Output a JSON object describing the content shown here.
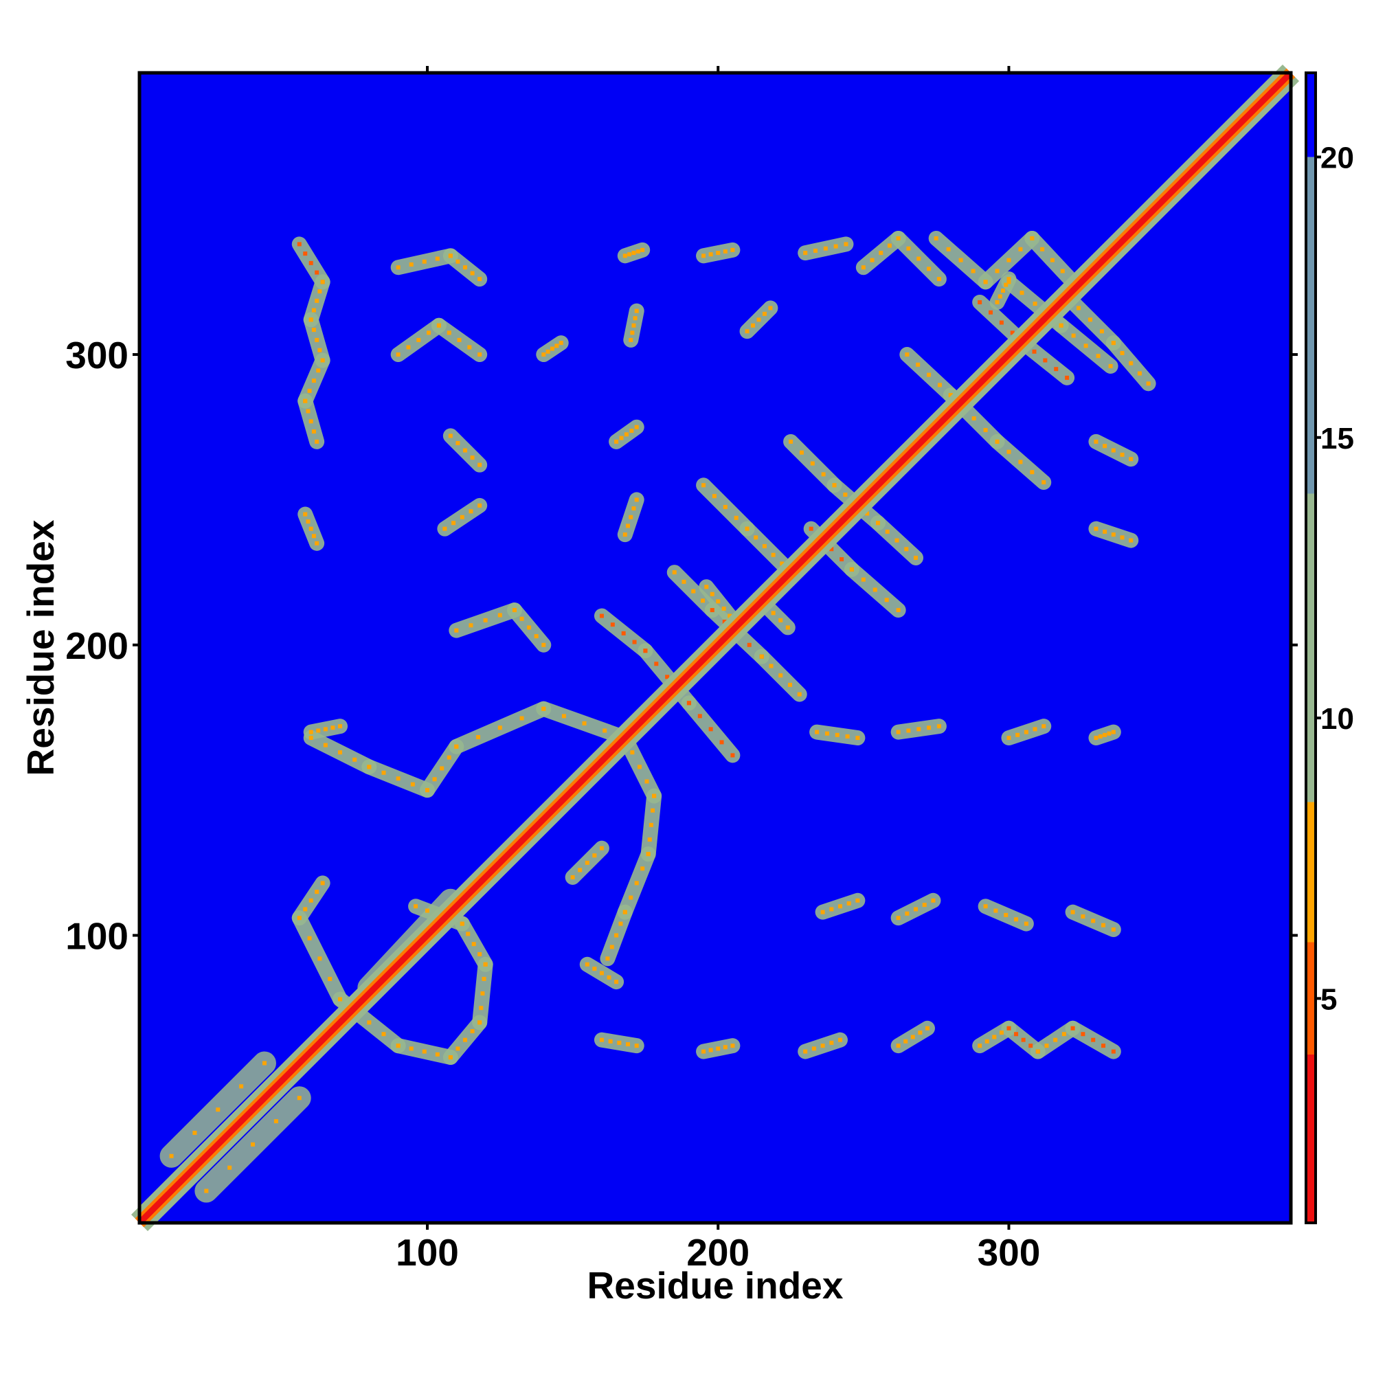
{
  "chart_data": {
    "type": "heatmap",
    "title": "",
    "xlabel": "Residue index",
    "ylabel": "Residue index",
    "xlim": [
      1,
      397
    ],
    "ylim": [
      1,
      397
    ],
    "x_ticks": [
      "100",
      "200",
      "300"
    ],
    "y_ticks": [
      "100",
      "200",
      "300"
    ],
    "grid": false,
    "colorbar": {
      "ticks": [
        "5",
        "10",
        "15",
        "20"
      ],
      "range": [
        1,
        21.5
      ],
      "colors": [
        {
          "from": 1,
          "to": 4,
          "color": "#ee1111"
        },
        {
          "from": 4,
          "to": 6,
          "color": "#ff5a00"
        },
        {
          "from": 6,
          "to": 8.5,
          "color": "#ffa500"
        },
        {
          "from": 8.5,
          "to": 14,
          "color": "#98b890"
        },
        {
          "from": 14,
          "to": 20,
          "color": "#6f96ae"
        },
        {
          "from": 20,
          "to": 21.5,
          "color": "#0000ff"
        }
      ]
    },
    "background_value": 21,
    "background_color": "#0000f5",
    "diagonal": {
      "core_color": "#ee1111",
      "edge_color": "#ff7a00",
      "halo_color": "#98b890"
    },
    "contact_segments": [
      {
        "from": [
          12,
          24
        ],
        "to": [
          44,
          56
        ],
        "level": "halo"
      },
      {
        "from": [
          24,
          12
        ],
        "to": [
          56,
          44
        ],
        "level": "halo"
      },
      {
        "from": [
          80,
          82
        ],
        "to": [
          108,
          112
        ],
        "level": "halo"
      },
      {
        "from": [
          56,
          106
        ],
        "to": [
          70,
          78
        ],
        "level": "mid"
      },
      {
        "from": [
          70,
          78
        ],
        "to": [
          90,
          62
        ],
        "level": "mid"
      },
      {
        "from": [
          90,
          62
        ],
        "to": [
          108,
          58
        ],
        "level": "mid"
      },
      {
        "from": [
          108,
          58
        ],
        "to": [
          118,
          70
        ],
        "level": "mid"
      },
      {
        "from": [
          118,
          70
        ],
        "to": [
          120,
          90
        ],
        "level": "mid"
      },
      {
        "from": [
          120,
          90
        ],
        "to": [
          112,
          104
        ],
        "level": "mid"
      },
      {
        "from": [
          112,
          104
        ],
        "to": [
          96,
          110
        ],
        "level": "mid"
      },
      {
        "from": [
          56,
          106
        ],
        "to": [
          64,
          118
        ],
        "level": "mid"
      },
      {
        "from": [
          110,
          165
        ],
        "to": [
          140,
          178
        ],
        "level": "mid"
      },
      {
        "from": [
          140,
          178
        ],
        "to": [
          168,
          168
        ],
        "level": "mid"
      },
      {
        "from": [
          168,
          168
        ],
        "to": [
          178,
          148
        ],
        "level": "mid"
      },
      {
        "from": [
          178,
          148
        ],
        "to": [
          176,
          128
        ],
        "level": "mid"
      },
      {
        "from": [
          176,
          128
        ],
        "to": [
          168,
          108
        ],
        "level": "mid"
      },
      {
        "from": [
          168,
          108
        ],
        "to": [
          162,
          92
        ],
        "level": "mid"
      },
      {
        "from": [
          60,
          168
        ],
        "to": [
          80,
          158
        ],
        "level": "mid"
      },
      {
        "from": [
          80,
          158
        ],
        "to": [
          100,
          150
        ],
        "level": "mid"
      },
      {
        "from": [
          100,
          150
        ],
        "to": [
          110,
          165
        ],
        "level": "mid"
      },
      {
        "from": [
          160,
          210
        ],
        "to": [
          175,
          198
        ],
        "level": "hot"
      },
      {
        "from": [
          175,
          198
        ],
        "to": [
          190,
          180
        ],
        "level": "hot"
      },
      {
        "from": [
          190,
          180
        ],
        "to": [
          205,
          162
        ],
        "level": "hot"
      },
      {
        "from": [
          185,
          225
        ],
        "to": [
          198,
          212
        ],
        "level": "mid"
      },
      {
        "from": [
          198,
          212
        ],
        "to": [
          215,
          196
        ],
        "level": "hot"
      },
      {
        "from": [
          215,
          196
        ],
        "to": [
          228,
          183
        ],
        "level": "mid"
      },
      {
        "from": [
          195,
          255
        ],
        "to": [
          210,
          240
        ],
        "level": "mid"
      },
      {
        "from": [
          210,
          240
        ],
        "to": [
          222,
          228
        ],
        "level": "mid"
      },
      {
        "from": [
          225,
          270
        ],
        "to": [
          240,
          255
        ],
        "level": "mid"
      },
      {
        "from": [
          240,
          255
        ],
        "to": [
          255,
          242
        ],
        "level": "mid"
      },
      {
        "from": [
          255,
          242
        ],
        "to": [
          268,
          230
        ],
        "level": "mid"
      },
      {
        "from": [
          232,
          240
        ],
        "to": [
          246,
          226
        ],
        "level": "hot"
      },
      {
        "from": [
          246,
          226
        ],
        "to": [
          262,
          212
        ],
        "level": "mid"
      },
      {
        "from": [
          265,
          300
        ],
        "to": [
          280,
          286
        ],
        "level": "mid"
      },
      {
        "from": [
          280,
          286
        ],
        "to": [
          296,
          270
        ],
        "level": "mid"
      },
      {
        "from": [
          296,
          270
        ],
        "to": [
          312,
          256
        ],
        "level": "mid"
      },
      {
        "from": [
          290,
          318
        ],
        "to": [
          305,
          304
        ],
        "level": "hot"
      },
      {
        "from": [
          305,
          304
        ],
        "to": [
          320,
          292
        ],
        "level": "hot"
      },
      {
        "from": [
          300,
          325
        ],
        "to": [
          318,
          310
        ],
        "level": "mid"
      },
      {
        "from": [
          318,
          310
        ],
        "to": [
          335,
          296
        ],
        "level": "mid"
      },
      {
        "from": [
          275,
          340
        ],
        "to": [
          292,
          325
        ],
        "level": "mid"
      },
      {
        "from": [
          292,
          325
        ],
        "to": [
          308,
          340
        ],
        "level": "mid"
      },
      {
        "from": [
          308,
          340
        ],
        "to": [
          322,
          325
        ],
        "level": "mid"
      },
      {
        "from": [
          250,
          330
        ],
        "to": [
          262,
          340
        ],
        "level": "mid"
      },
      {
        "from": [
          262,
          340
        ],
        "to": [
          276,
          326
        ],
        "level": "mid"
      },
      {
        "from": [
          320,
          320
        ],
        "to": [
          336,
          304
        ],
        "level": "mid"
      },
      {
        "from": [
          336,
          304
        ],
        "to": [
          348,
          290
        ],
        "level": "mid"
      },
      {
        "from": [
          56,
          338
        ],
        "to": [
          64,
          325
        ],
        "level": "hot"
      },
      {
        "from": [
          64,
          325
        ],
        "to": [
          60,
          312
        ],
        "level": "mid"
      },
      {
        "from": [
          60,
          312
        ],
        "to": [
          64,
          298
        ],
        "level": "mid"
      },
      {
        "from": [
          64,
          298
        ],
        "to": [
          58,
          284
        ],
        "level": "mid"
      },
      {
        "from": [
          58,
          284
        ],
        "to": [
          62,
          270
        ],
        "level": "mid"
      },
      {
        "from": [
          58,
          245
        ],
        "to": [
          62,
          235
        ],
        "level": "mid"
      },
      {
        "from": [
          90,
          300
        ],
        "to": [
          104,
          310
        ],
        "level": "mid"
      },
      {
        "from": [
          104,
          310
        ],
        "to": [
          118,
          300
        ],
        "level": "mid"
      },
      {
        "from": [
          90,
          330
        ],
        "to": [
          108,
          334
        ],
        "level": "mid"
      },
      {
        "from": [
          108,
          334
        ],
        "to": [
          118,
          326
        ],
        "level": "mid"
      },
      {
        "from": [
          108,
          272
        ],
        "to": [
          118,
          262
        ],
        "level": "mid"
      },
      {
        "from": [
          106,
          240
        ],
        "to": [
          118,
          248
        ],
        "level": "mid"
      },
      {
        "from": [
          110,
          205
        ],
        "to": [
          130,
          212
        ],
        "level": "mid"
      },
      {
        "from": [
          130,
          212
        ],
        "to": [
          140,
          200
        ],
        "level": "mid"
      },
      {
        "from": [
          60,
          170
        ],
        "to": [
          70,
          172
        ],
        "level": "mid"
      },
      {
        "from": [
          170,
          305
        ],
        "to": [
          172,
          315
        ],
        "level": "mid"
      },
      {
        "from": [
          165,
          270
        ],
        "to": [
          172,
          275
        ],
        "level": "mid"
      },
      {
        "from": [
          168,
          238
        ],
        "to": [
          172,
          250
        ],
        "level": "mid"
      },
      {
        "from": [
          168,
          334
        ],
        "to": [
          174,
          336
        ],
        "level": "mid"
      },
      {
        "from": [
          150,
          120
        ],
        "to": [
          160,
          130
        ],
        "level": "mid"
      },
      {
        "from": [
          155,
          90
        ],
        "to": [
          165,
          84
        ],
        "level": "mid"
      },
      {
        "from": [
          160,
          64
        ],
        "to": [
          172,
          62
        ],
        "level": "mid"
      },
      {
        "from": [
          195,
          60
        ],
        "to": [
          205,
          62
        ],
        "level": "mid"
      },
      {
        "from": [
          230,
          60
        ],
        "to": [
          242,
          64
        ],
        "level": "mid"
      },
      {
        "from": [
          262,
          62
        ],
        "to": [
          272,
          68
        ],
        "level": "mid"
      },
      {
        "from": [
          290,
          62
        ],
        "to": [
          300,
          68
        ],
        "level": "mid"
      },
      {
        "from": [
          300,
          68
        ],
        "to": [
          310,
          60
        ],
        "level": "hot"
      },
      {
        "from": [
          310,
          60
        ],
        "to": [
          322,
          68
        ],
        "level": "mid"
      },
      {
        "from": [
          322,
          68
        ],
        "to": [
          336,
          60
        ],
        "level": "hot"
      },
      {
        "from": [
          236,
          108
        ],
        "to": [
          248,
          112
        ],
        "level": "mid"
      },
      {
        "from": [
          262,
          106
        ],
        "to": [
          274,
          112
        ],
        "level": "mid"
      },
      {
        "from": [
          292,
          110
        ],
        "to": [
          306,
          104
        ],
        "level": "mid"
      },
      {
        "from": [
          322,
          108
        ],
        "to": [
          336,
          102
        ],
        "level": "mid"
      },
      {
        "from": [
          234,
          170
        ],
        "to": [
          248,
          168
        ],
        "level": "mid"
      },
      {
        "from": [
          262,
          170
        ],
        "to": [
          276,
          172
        ],
        "level": "mid"
      },
      {
        "from": [
          300,
          168
        ],
        "to": [
          312,
          172
        ],
        "level": "mid"
      },
      {
        "from": [
          330,
          168
        ],
        "to": [
          336,
          170
        ],
        "level": "mid"
      },
      {
        "from": [
          296,
          318
        ],
        "to": [
          300,
          326
        ],
        "level": "mid"
      },
      {
        "from": [
          330,
          240
        ],
        "to": [
          342,
          236
        ],
        "level": "mid"
      },
      {
        "from": [
          330,
          270
        ],
        "to": [
          342,
          264
        ],
        "level": "mid"
      },
      {
        "from": [
          230,
          335
        ],
        "to": [
          244,
          338
        ],
        "level": "mid"
      },
      {
        "from": [
          195,
          334
        ],
        "to": [
          205,
          336
        ],
        "level": "mid"
      },
      {
        "from": [
          210,
          308
        ],
        "to": [
          218,
          316
        ],
        "level": "mid"
      },
      {
        "from": [
          196,
          220
        ],
        "to": [
          204,
          210
        ],
        "level": "mid"
      },
      {
        "from": [
          214,
          216
        ],
        "to": [
          224,
          206
        ],
        "level": "mid"
      },
      {
        "from": [
          140,
          300
        ],
        "to": [
          146,
          304
        ],
        "level": "mid"
      }
    ]
  }
}
